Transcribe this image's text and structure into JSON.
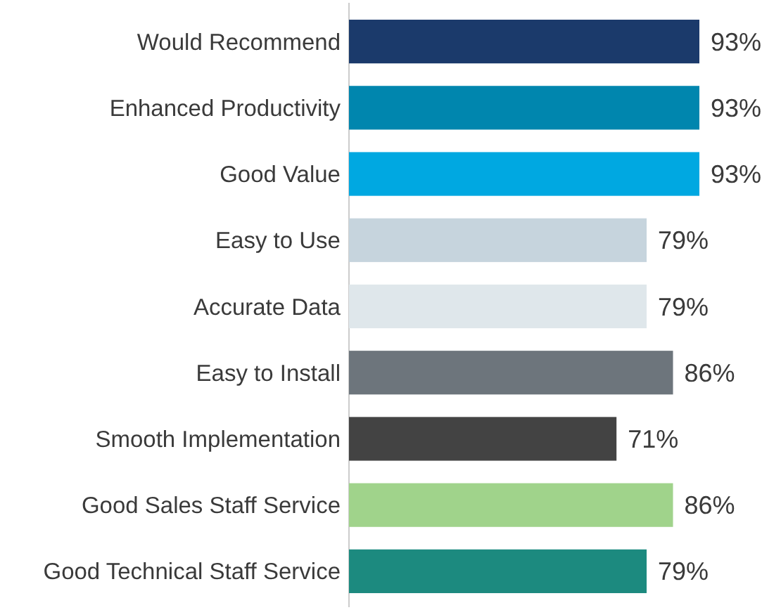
{
  "chart_data": {
    "type": "bar",
    "orientation": "horizontal",
    "categories": [
      "Would Recommend",
      "Enhanced Productivity",
      "Good Value",
      "Easy to Use",
      "Accurate Data",
      "Easy to Install",
      "Smooth Implementation",
      "Good Sales Staff Service",
      "Good Technical Staff Service"
    ],
    "values": [
      93,
      93,
      93,
      79,
      79,
      86,
      71,
      86,
      79
    ],
    "value_labels": [
      "93%",
      "93%",
      "93%",
      "79%",
      "79%",
      "86%",
      "71%",
      "86%",
      "79%"
    ],
    "colors": [
      "#1b3a6b",
      "#0086ae",
      "#00a8e1",
      "#c6d4dd",
      "#dfe7eb",
      "#6d757c",
      "#434343",
      "#a0d38b",
      "#1c8a7f"
    ]
  }
}
